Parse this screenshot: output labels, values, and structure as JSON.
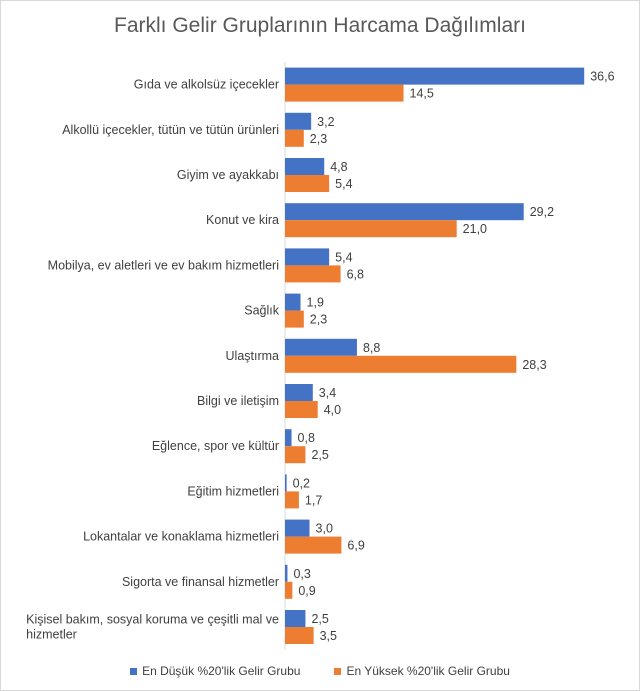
{
  "chart_data": {
    "type": "bar",
    "orientation": "horizontal",
    "title": "Farklı Gelir Gruplarının Harcama Dağılımları",
    "categories": [
      "Gıda ve alkolsüz içecekler",
      "Alkollü içecekler, tütün ve tütün ürünleri",
      "Giyim ve ayakkabı",
      "Konut ve kira",
      "Mobilya, ev aletleri ve ev bakım hizmetleri",
      "Sağlık",
      "Ulaştırma",
      "Bilgi ve iletişim",
      "Eğlence, spor ve kültür",
      "Eğitim hizmetleri",
      "Lokantalar ve konaklama hizmetleri",
      "Sigorta ve finansal hizmetler",
      "Kişisel bakım, sosyal koruma ve çeşitli mal ve hizmetler"
    ],
    "series": [
      {
        "name": "En Düşük %20'lik Gelir Grubu",
        "color": "#4472C4",
        "values": [
          36.6,
          3.2,
          4.8,
          29.2,
          5.4,
          1.9,
          8.8,
          3.4,
          0.8,
          0.2,
          3.0,
          0.3,
          2.5
        ],
        "labels": [
          "36,6",
          "3,2",
          "4,8",
          "29,2",
          "5,4",
          "1,9",
          "8,8",
          "3,4",
          "0,8",
          "0,2",
          "3,0",
          "0,3",
          "2,5"
        ]
      },
      {
        "name": "En Yüksek %20'lik Gelir Grubu",
        "color": "#ED7D31",
        "values": [
          14.5,
          2.3,
          5.4,
          21.0,
          6.8,
          2.3,
          28.3,
          4.0,
          2.5,
          1.7,
          6.9,
          0.9,
          3.5
        ],
        "labels": [
          "14,5",
          "2,3",
          "5,4",
          "21,0",
          "6,8",
          "2,3",
          "28,3",
          "4,0",
          "2,5",
          "1,7",
          "6,9",
          "0,9",
          "3,5"
        ]
      }
    ],
    "xlim": [
      0,
      40
    ],
    "grid": false,
    "legend_position": "bottom"
  }
}
